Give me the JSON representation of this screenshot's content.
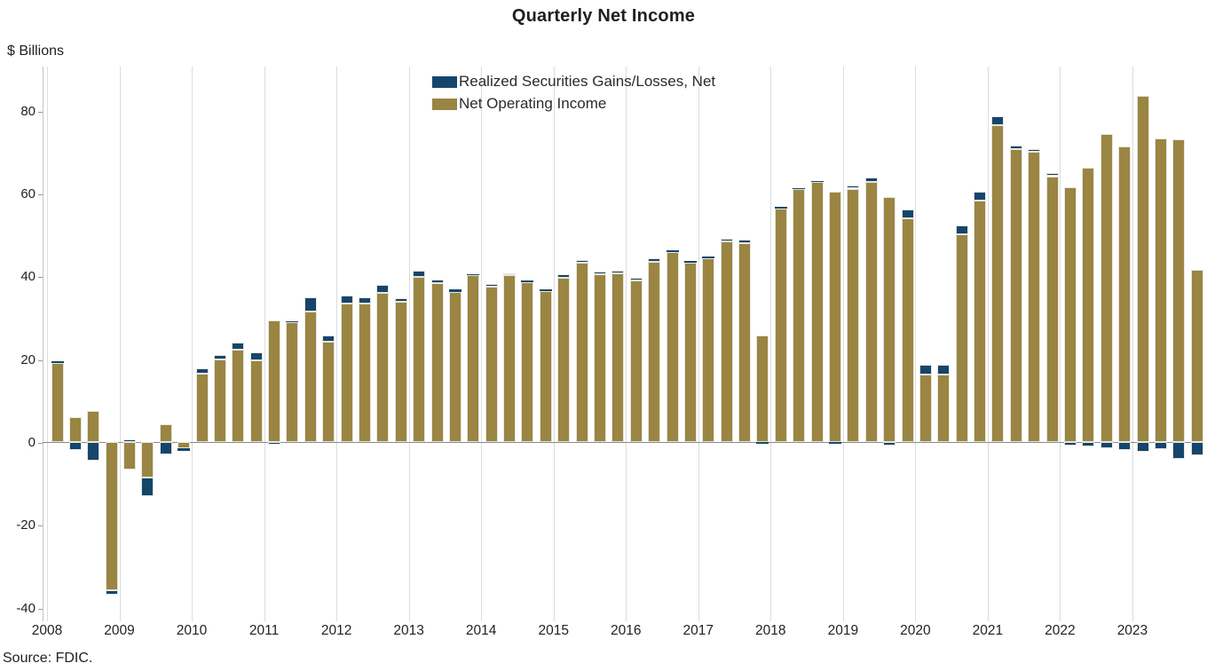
{
  "title": "Quarterly Net Income",
  "y_axis_unit": "$ Billions",
  "source_note": "Source: FDIC.",
  "colors": {
    "realized_securities": "#16456B",
    "net_operating_income": "#9A8542",
    "gridline": "#dcdcdc",
    "zero_line": "#8a8a8a",
    "text": "#222222"
  },
  "legend": {
    "items": [
      {
        "label": "Realized Securities Gains/Losses, Net",
        "color": "#16456B"
      },
      {
        "label": "Net Operating Income",
        "color": "#9A8542"
      }
    ]
  },
  "chart_data": {
    "type": "bar",
    "subtype": "stacked-quarterly",
    "title": "Quarterly Net Income",
    "ylabel": "$ Billions",
    "xlabel": "",
    "units": "billions of dollars",
    "grid": "vertical-year-lines-only",
    "legend_position": "top-center",
    "y_ticks": [
      80,
      60,
      40,
      20,
      0,
      -20,
      -40
    ],
    "ylim": [
      -43,
      91
    ],
    "x_tick_labels": [
      "2008",
      "2009",
      "2010",
      "2011",
      "2012",
      "2013",
      "2014",
      "2015",
      "2016",
      "2017",
      "2018",
      "2019",
      "2020",
      "2021",
      "2022",
      "2023"
    ],
    "series_names": [
      "Net Operating Income",
      "Realized Securities Gains/Losses, Net"
    ],
    "quarters_per_year": 4,
    "values": [
      {
        "year": 2008,
        "noi": [
          19.0,
          6.1,
          7.4,
          -35.8
        ],
        "rsg": [
          0.5,
          -1.9,
          -4.6,
          -1.1
        ]
      },
      {
        "year": 2009,
        "noi": [
          -6.7,
          -8.5,
          4.3,
          -1.6
        ],
        "rsg": [
          0.6,
          -4.6,
          -3.0,
          -0.5
        ]
      },
      {
        "year": 2010,
        "noi": [
          16.6,
          20.0,
          22.2,
          19.8
        ],
        "rsg": [
          1.1,
          1.1,
          1.9,
          1.9
        ]
      },
      {
        "year": 2011,
        "noi": [
          29.4,
          29.0,
          31.5,
          24.2
        ],
        "rsg": [
          -0.6,
          0.2,
          3.4,
          1.6
        ]
      },
      {
        "year": 2012,
        "noi": [
          33.5,
          33.4,
          36.1,
          33.8
        ],
        "rsg": [
          1.9,
          1.6,
          1.9,
          1.0
        ]
      },
      {
        "year": 2013,
        "noi": [
          39.8,
          38.3,
          36.3,
          40.2
        ],
        "rsg": [
          1.5,
          0.9,
          0.5,
          0.4
        ]
      },
      {
        "year": 2014,
        "noi": [
          37.5,
          40.2,
          38.6,
          36.4
        ],
        "rsg": [
          0.6,
          0.6,
          0.5,
          0.5
        ]
      },
      {
        "year": 2015,
        "noi": [
          39.6,
          43.3,
          40.5,
          40.7
        ],
        "rsg": [
          0.9,
          0.6,
          0.6,
          0.7
        ]
      },
      {
        "year": 2016,
        "noi": [
          39.0,
          43.6,
          45.8,
          43.3
        ],
        "rsg": [
          0.6,
          0.7,
          0.5,
          0.5
        ]
      },
      {
        "year": 2017,
        "noi": [
          44.3,
          48.4,
          48.1,
          25.7
        ],
        "rsg": [
          0.4,
          0.7,
          0.7,
          -0.4
        ]
      },
      {
        "year": 2018,
        "noi": [
          56.4,
          61.0,
          62.8,
          60.5
        ],
        "rsg": [
          0.4,
          0.3,
          0.3,
          -0.4
        ]
      },
      {
        "year": 2019,
        "noi": [
          61.2,
          62.8,
          59.2,
          54.0
        ],
        "rsg": [
          0.7,
          1.1,
          -0.9,
          2.1
        ]
      },
      {
        "year": 2020,
        "noi": [
          16.3,
          16.3,
          50.1,
          58.4
        ],
        "rsg": [
          2.3,
          2.3,
          2.1,
          2.1
        ]
      },
      {
        "year": 2021,
        "noi": [
          76.5,
          70.7,
          70.0,
          64.2
        ],
        "rsg": [
          2.1,
          0.9,
          0.7,
          0.7
        ]
      },
      {
        "year": 2022,
        "noi": [
          61.6,
          66.2,
          74.3,
          71.4
        ],
        "rsg": [
          -0.8,
          -1.0,
          -1.5,
          -2.0
        ]
      },
      {
        "year": 2023,
        "noi": [
          83.6,
          73.4,
          73.2,
          41.5
        ],
        "rsg": [
          -2.4,
          -1.7,
          -4.1,
          -3.3
        ]
      }
    ]
  }
}
